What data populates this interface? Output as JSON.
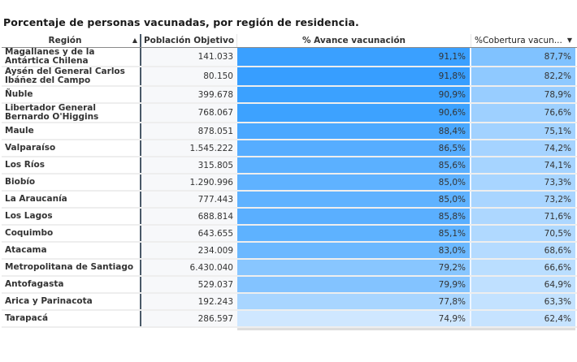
{
  "title": "Porcentaje de personas vacunadas, por región de residencia.",
  "table": {
    "columns": [
      {
        "label": "Región",
        "sort": "ascending",
        "sort_icon": "▲"
      },
      {
        "label": "Población Objetivo"
      },
      {
        "label": "% Avance vacunación"
      },
      {
        "label": "%Cobertura vacun...",
        "sort": "descending",
        "sort_icon": "▼"
      }
    ],
    "rows": [
      {
        "region": "Magallanes y de la Antártica Chilena",
        "poblacion": "141.033",
        "avance": "91,1%",
        "cobertura": "87,7%",
        "avance_color": "#3aa0ff",
        "cobertura_color": "#80c2ff",
        "tall": true
      },
      {
        "region": "Aysén del General Carlos Ibáñez del Campo",
        "poblacion": "80.150",
        "avance": "91,8%",
        "cobertura": "82,2%",
        "avance_color": "#379eff",
        "cobertura_color": "#8fc9ff",
        "tall": true
      },
      {
        "region": "Ñuble",
        "poblacion": "399.678",
        "avance": "90,9%",
        "cobertura": "78,9%",
        "avance_color": "#3ba1ff",
        "cobertura_color": "#98cdff",
        "tall": false
      },
      {
        "region": "Libertador General Bernardo O'Higgins",
        "poblacion": "768.067",
        "avance": "90,6%",
        "cobertura": "76,6%",
        "avance_color": "#3da2ff",
        "cobertura_color": "#9ed0ff",
        "tall": true
      },
      {
        "region": "Maule",
        "poblacion": "878.051",
        "avance": "88,4%",
        "cobertura": "75,1%",
        "avance_color": "#4aa8ff",
        "cobertura_color": "#a2d2ff",
        "tall": false
      },
      {
        "region": "Valparaíso",
        "poblacion": "1.545.222",
        "avance": "86,5%",
        "cobertura": "74,2%",
        "avance_color": "#56adff",
        "cobertura_color": "#a5d3ff",
        "tall": false
      },
      {
        "region": "Los Ríos",
        "poblacion": "315.805",
        "avance": "85,6%",
        "cobertura": "74,1%",
        "avance_color": "#5bb0ff",
        "cobertura_color": "#a6d4ff",
        "tall": false
      },
      {
        "region": "Biobío",
        "poblacion": "1.290.996",
        "avance": "85,0%",
        "cobertura": "73,3%",
        "avance_color": "#5fb2ff",
        "cobertura_color": "#a8d5ff",
        "tall": false
      },
      {
        "region": "La Araucanía",
        "poblacion": "777.443",
        "avance": "85,0%",
        "cobertura": "73,2%",
        "avance_color": "#5fb2ff",
        "cobertura_color": "#a9d5ff",
        "tall": false
      },
      {
        "region": "Los Lagos",
        "poblacion": "688.814",
        "avance": "85,8%",
        "cobertura": "71,6%",
        "avance_color": "#5aafff",
        "cobertura_color": "#add7ff",
        "tall": false
      },
      {
        "region": "Coquimbo",
        "poblacion": "643.655",
        "avance": "85,1%",
        "cobertura": "70,5%",
        "avance_color": "#5eb2ff",
        "cobertura_color": "#b0d9ff",
        "tall": false
      },
      {
        "region": "Atacama",
        "poblacion": "234.009",
        "avance": "83,0%",
        "cobertura": "68,6%",
        "avance_color": "#6bb8ff",
        "cobertura_color": "#b5dbff",
        "tall": false
      },
      {
        "region": "Metropolitana de Santiago",
        "poblacion": "6.430.040",
        "avance": "79,2%",
        "cobertura": "66,6%",
        "avance_color": "#88c6ff",
        "cobertura_color": "#badeff",
        "tall": false
      },
      {
        "region": "Antofagasta",
        "poblacion": "529.037",
        "avance": "79,9%",
        "cobertura": "64,9%",
        "avance_color": "#83c3ff",
        "cobertura_color": "#bfe0ff",
        "tall": false
      },
      {
        "region": "Arica y Parinacota",
        "poblacion": "192.243",
        "avance": "77,8%",
        "cobertura": "63,3%",
        "avance_color": "#a8d5ff",
        "cobertura_color": "#c3e2ff",
        "tall": false
      },
      {
        "region": "Tarapacá",
        "poblacion": "286.597",
        "avance": "74,9%",
        "cobertura": "62,4%",
        "avance_color": "#cfe7ff",
        "cobertura_color": "#c6e3ff",
        "tall": false
      }
    ]
  }
}
